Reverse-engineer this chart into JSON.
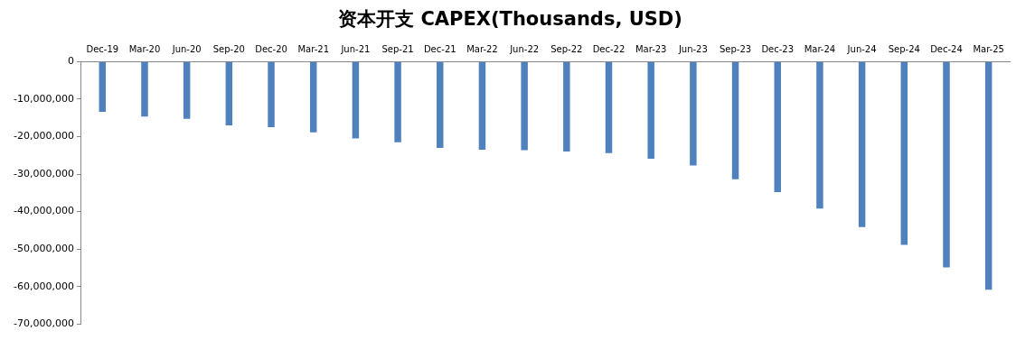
{
  "chart_data": {
    "type": "bar",
    "title": "资本开支 CAPEX(Thousands, USD)",
    "categories": [
      "Dec-19",
      "Mar-20",
      "Jun-20",
      "Sep-20",
      "Dec-20",
      "Mar-21",
      "Jun-21",
      "Sep-21",
      "Dec-21",
      "Mar-22",
      "Jun-22",
      "Sep-22",
      "Dec-22",
      "Mar-23",
      "Jun-23",
      "Sep-23",
      "Dec-23",
      "Mar-24",
      "Jun-24",
      "Sep-24",
      "Dec-24",
      "Mar-25"
    ],
    "values": [
      -13400000,
      -14700000,
      -15300000,
      -17000000,
      -17500000,
      -18900000,
      -20500000,
      -21500000,
      -23000000,
      -23500000,
      -23600000,
      -24000000,
      -24400000,
      -25900000,
      -27700000,
      -31400000,
      -34800000,
      -39200000,
      -44100000,
      -48900000,
      -54900000,
      -60800000
    ],
    "color": "#4f81bd",
    "ylim": [
      -70000000,
      0
    ],
    "yticks": [
      {
        "value": 0,
        "label": "0"
      },
      {
        "value": -10000000,
        "label": "-10,000,000"
      },
      {
        "value": -20000000,
        "label": "-20,000,000"
      },
      {
        "value": -30000000,
        "label": "-30,000,000"
      },
      {
        "value": -40000000,
        "label": "-40,000,000"
      },
      {
        "value": -50000000,
        "label": "-50,000,000"
      },
      {
        "value": -60000000,
        "label": "-60,000,000"
      },
      {
        "value": -70000000,
        "label": "-70,000,000"
      }
    ],
    "grid": false,
    "legend": false
  }
}
